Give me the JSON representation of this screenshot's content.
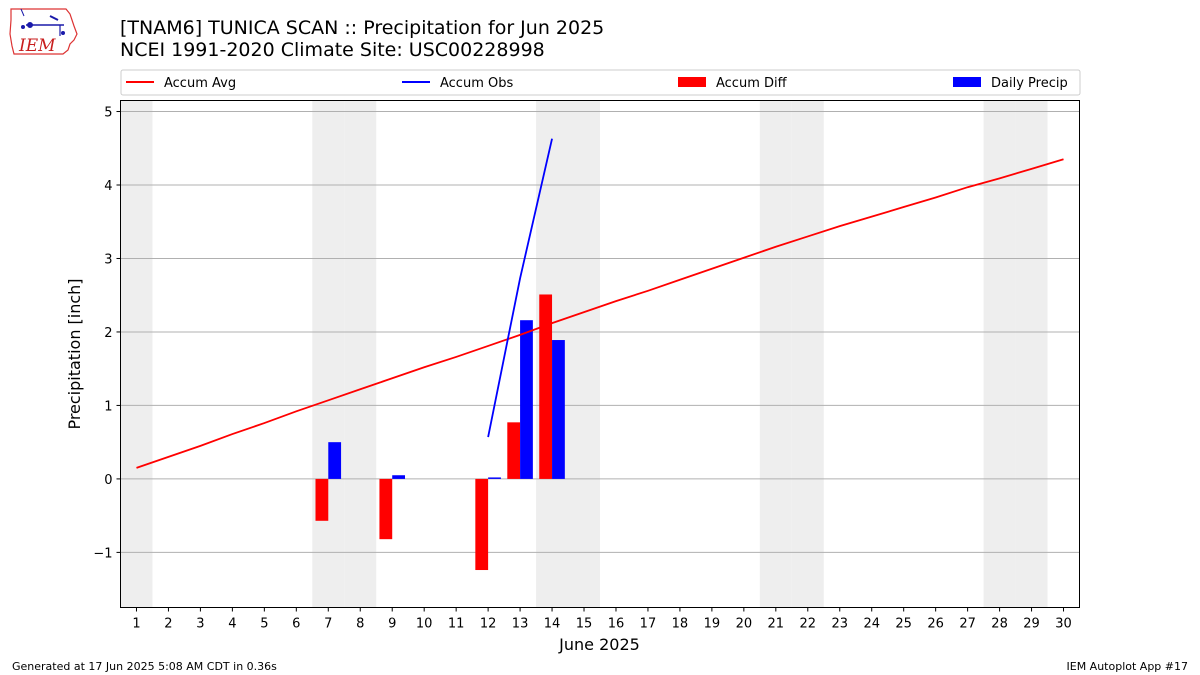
{
  "title": "[TNAM6] TUNICA SCAN :: Precipitation for Jun 2025",
  "subtitle": "NCEI 1991-2020 Climate Site: USC00228998",
  "logo_text": "IEM",
  "footer_left": "Generated at 17 Jun 2025 5:08 AM CDT in 0.36s",
  "footer_right": "IEM Autoplot App #17",
  "chart_data": {
    "type": "bar",
    "xlabel": "June 2025",
    "ylabel": "Precipitation [inch]",
    "xlim": [
      0.5,
      30.5
    ],
    "ylim": [
      -1.75,
      5.15
    ],
    "xticks": [
      1,
      2,
      3,
      4,
      5,
      6,
      7,
      8,
      9,
      10,
      11,
      12,
      13,
      14,
      15,
      16,
      17,
      18,
      19,
      20,
      21,
      22,
      23,
      24,
      25,
      26,
      27,
      28,
      29,
      30
    ],
    "yticks": [
      -1,
      0,
      1,
      2,
      3,
      4,
      5
    ],
    "ytick_labels": [
      "−1",
      "0",
      "1",
      "2",
      "3",
      "4",
      "5"
    ],
    "grid": "horizontal",
    "legend_position": "top",
    "weekend_shading_color": "#eeeeee",
    "weekend_days": [
      1,
      7,
      8,
      14,
      15,
      21,
      22,
      28,
      29
    ],
    "series": [
      {
        "name": "Accum Avg",
        "kind": "line",
        "color": "#ff0000",
        "x": [
          1,
          2,
          3,
          4,
          5,
          6,
          7,
          8,
          9,
          10,
          11,
          12,
          13,
          14,
          15,
          16,
          17,
          18,
          19,
          20,
          21,
          22,
          23,
          24,
          25,
          26,
          27,
          28,
          29,
          30
        ],
        "values": [
          0.15,
          0.3,
          0.45,
          0.61,
          0.76,
          0.92,
          1.07,
          1.22,
          1.37,
          1.52,
          1.66,
          1.81,
          1.96,
          2.12,
          2.27,
          2.42,
          2.56,
          2.71,
          2.86,
          3.01,
          3.16,
          3.3,
          3.44,
          3.57,
          3.7,
          3.83,
          3.97,
          4.09,
          4.22,
          4.35
        ]
      },
      {
        "name": "Accum Obs",
        "kind": "line",
        "color": "#0000ff",
        "x": [
          12,
          13,
          14
        ],
        "values": [
          0.57,
          2.73,
          4.63
        ]
      },
      {
        "name": "Accum Diff",
        "kind": "bar",
        "color": "#ff0000",
        "x": [
          7,
          9,
          12,
          13,
          14
        ],
        "values": [
          -0.57,
          -0.82,
          -1.24,
          0.77,
          2.51
        ]
      },
      {
        "name": "Daily Precip",
        "kind": "bar",
        "color": "#0000ff",
        "x": [
          7,
          9,
          12,
          13,
          14
        ],
        "values": [
          0.5,
          0.05,
          0.02,
          2.16,
          1.89
        ]
      }
    ]
  }
}
